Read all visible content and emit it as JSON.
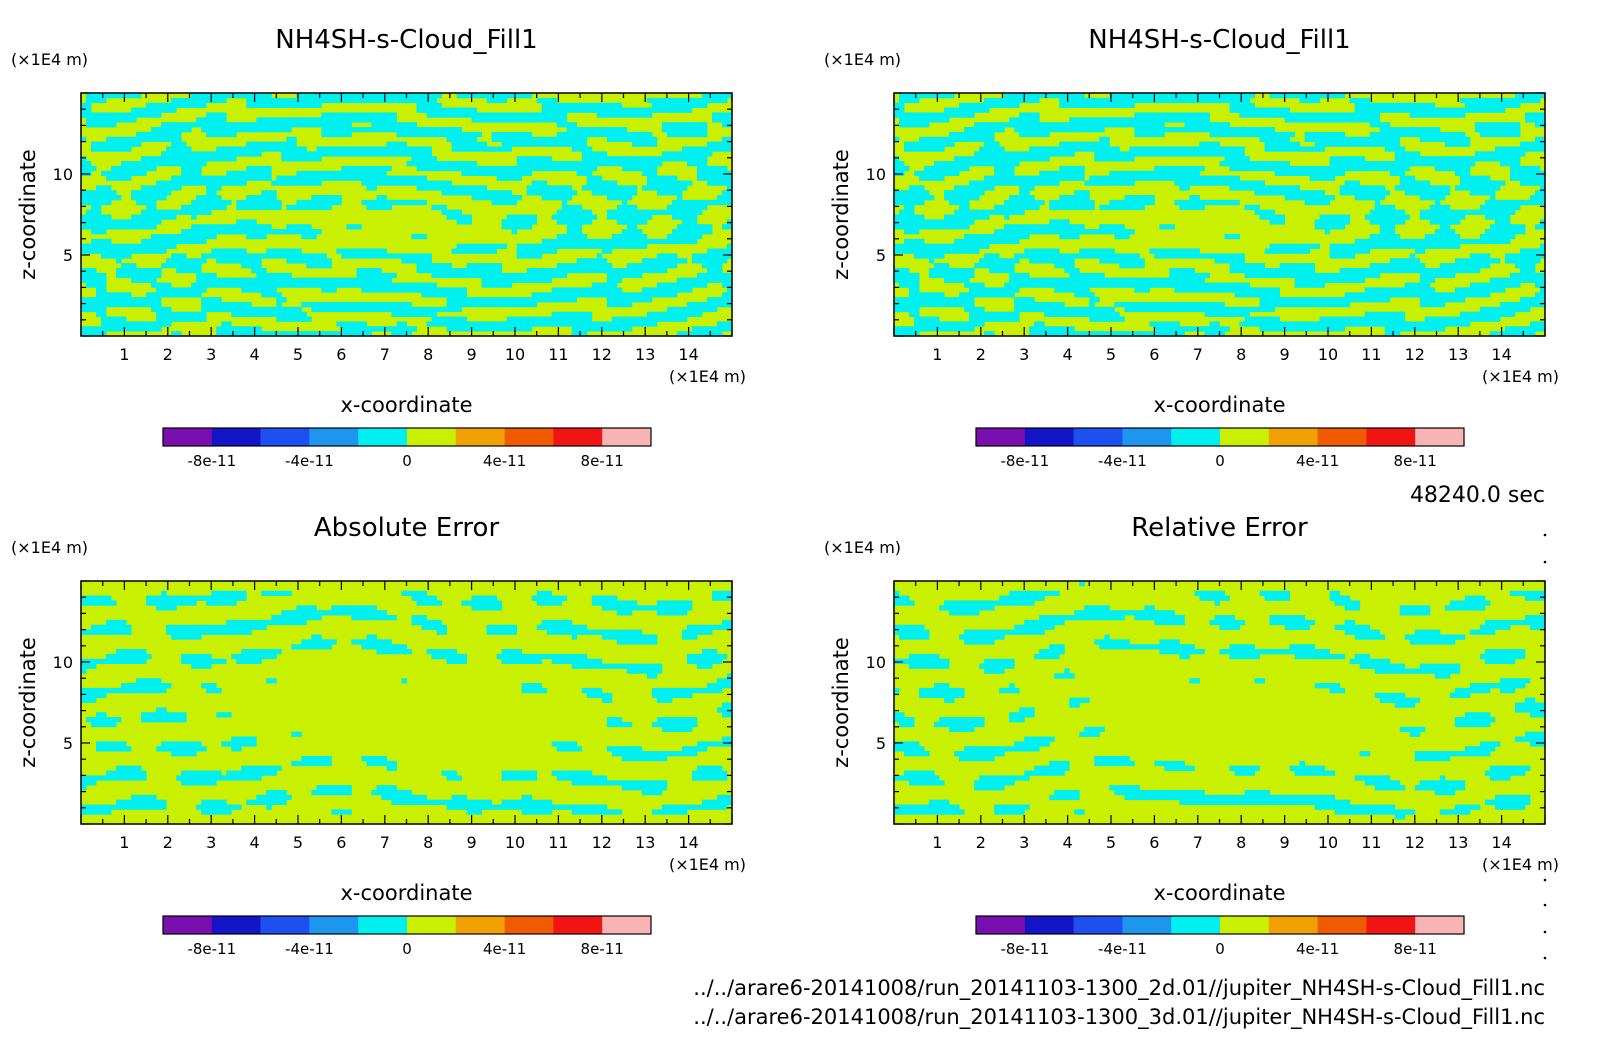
{
  "chart_data": [
    {
      "type": "heatmap",
      "title": "NH4SH-s-Cloud_Fill1",
      "xlabel": "x-coordinate",
      "ylabel": "z-coordinate",
      "x_unit": "(×1E4 m)",
      "y_unit": "(×1E4 m)",
      "xlim": [
        0,
        15
      ],
      "ylim": [
        0,
        15
      ],
      "x_ticks": [
        "1",
        "2",
        "3",
        "4",
        "5",
        "6",
        "7",
        "8",
        "9",
        "10",
        "11",
        "12",
        "13",
        "14"
      ],
      "y_ticks": [
        "5",
        "10"
      ],
      "pattern": "dense",
      "colorbar": {
        "ticks": [
          "-8e-11",
          "-4e-11",
          "0",
          "4e-11",
          "8e-11"
        ]
      }
    },
    {
      "type": "heatmap",
      "title": "NH4SH-s-Cloud_Fill1",
      "xlabel": "x-coordinate",
      "ylabel": "z-coordinate",
      "x_unit": "(×1E4 m)",
      "y_unit": "(×1E4 m)",
      "xlim": [
        0,
        15
      ],
      "ylim": [
        0,
        15
      ],
      "x_ticks": [
        "1",
        "2",
        "3",
        "4",
        "5",
        "6",
        "7",
        "8",
        "9",
        "10",
        "11",
        "12",
        "13",
        "14"
      ],
      "y_ticks": [
        "5",
        "10"
      ],
      "pattern": "dense",
      "colorbar": {
        "ticks": [
          "-8e-11",
          "-4e-11",
          "0",
          "4e-11",
          "8e-11"
        ]
      }
    },
    {
      "type": "heatmap",
      "title": "Absolute Error",
      "xlabel": "x-coordinate",
      "ylabel": "z-coordinate",
      "x_unit": "(×1E4 m)",
      "y_unit": "(×1E4 m)",
      "xlim": [
        0,
        15
      ],
      "ylim": [
        0,
        15
      ],
      "x_ticks": [
        "1",
        "2",
        "3",
        "4",
        "5",
        "6",
        "7",
        "8",
        "9",
        "10",
        "11",
        "12",
        "13",
        "14"
      ],
      "y_ticks": [
        "5",
        "10"
      ],
      "pattern": "sparse",
      "colorbar": {
        "ticks": [
          "-8e-11",
          "-4e-11",
          "0",
          "4e-11",
          "8e-11"
        ]
      }
    },
    {
      "type": "heatmap",
      "title": "Relative Error",
      "xlabel": "x-coordinate",
      "ylabel": "z-coordinate",
      "x_unit": "(×1E4 m)",
      "y_unit": "(×1E4 m)",
      "xlim": [
        0,
        15
      ],
      "ylim": [
        0,
        15
      ],
      "x_ticks": [
        "1",
        "2",
        "3",
        "4",
        "5",
        "6",
        "7",
        "8",
        "9",
        "10",
        "11",
        "12",
        "13",
        "14"
      ],
      "y_ticks": [
        "5",
        "10"
      ],
      "pattern": "sparse",
      "colorbar": {
        "ticks": [
          "-8e-11",
          "-4e-11",
          "0",
          "4e-11",
          "8e-11"
        ]
      }
    }
  ],
  "colorbar_colors": [
    "#7a0fb0",
    "#1414c8",
    "#1e50f0",
    "#1e96f0",
    "#00f0f0",
    "#c8f000",
    "#f0a000",
    "#f05a00",
    "#f01414",
    "#f8b4b4"
  ],
  "time_label": "48240.0 sec",
  "footer": [
    "../../arare6-20141008/run_20141103-1300_2d.01//jupiter_NH4SH-s-Cloud_Fill1.nc",
    "../../arare6-20141008/run_20141103-1300_3d.01//jupiter_NH4SH-s-Cloud_Fill1.nc"
  ]
}
